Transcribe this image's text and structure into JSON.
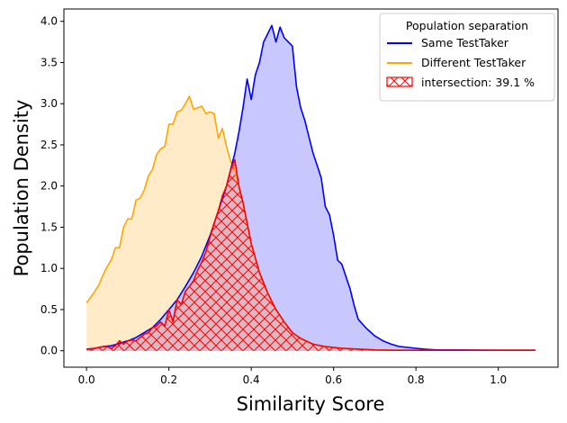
{
  "chart_data": {
    "type": "area",
    "title": "",
    "xlabel": "Similarity Score",
    "ylabel": "Population Density",
    "xlim": [
      -0.055,
      1.145
    ],
    "ylim": [
      -0.2,
      4.15
    ],
    "xticks": [
      0.0,
      0.2,
      0.4,
      0.6,
      0.8,
      1.0
    ],
    "xtick_labels": [
      "0.0",
      "0.2",
      "0.4",
      "0.6",
      "0.8",
      "1.0"
    ],
    "yticks": [
      0.0,
      0.5,
      1.0,
      1.5,
      2.0,
      2.5,
      3.0,
      3.5,
      4.0
    ],
    "ytick_labels": [
      "0.0",
      "0.5",
      "1.0",
      "1.5",
      "2.0",
      "2.5",
      "3.0",
      "3.5",
      "4.0"
    ],
    "grid": false,
    "legend": {
      "title": "Population separation",
      "placement": "top-right",
      "entries": [
        {
          "label": "Same TestTaker",
          "kind": "line",
          "color": "#0000ff"
        },
        {
          "label": "Different TestTaker",
          "kind": "line",
          "color": "#ffa500"
        },
        {
          "label": "intersection: 39.1 %",
          "kind": "hatch",
          "color": "#ff0000"
        }
      ]
    },
    "series": [
      {
        "name": "Same TestTaker",
        "color": "#0000ff",
        "fill": "#c8c8ff",
        "x": [
          0.0,
          0.02,
          0.04,
          0.06,
          0.08,
          0.1,
          0.12,
          0.14,
          0.16,
          0.18,
          0.2,
          0.22,
          0.24,
          0.26,
          0.28,
          0.3,
          0.32,
          0.34,
          0.36,
          0.37,
          0.38,
          0.39,
          0.4,
          0.41,
          0.42,
          0.43,
          0.44,
          0.45,
          0.46,
          0.47,
          0.48,
          0.49,
          0.5,
          0.51,
          0.52,
          0.53,
          0.54,
          0.55,
          0.56,
          0.57,
          0.58,
          0.59,
          0.6,
          0.61,
          0.62,
          0.63,
          0.64,
          0.65,
          0.66,
          0.68,
          0.7,
          0.72,
          0.74,
          0.76,
          0.78,
          0.8,
          0.82,
          0.85,
          0.9,
          1.0,
          1.09
        ],
        "y": [
          0.02,
          0.03,
          0.05,
          0.06,
          0.09,
          0.12,
          0.16,
          0.22,
          0.28,
          0.38,
          0.5,
          0.62,
          0.78,
          0.95,
          1.15,
          1.4,
          1.7,
          2.0,
          2.4,
          2.65,
          2.95,
          3.3,
          3.05,
          3.35,
          3.5,
          3.75,
          3.85,
          3.95,
          3.75,
          3.93,
          3.8,
          3.75,
          3.7,
          3.2,
          2.95,
          2.8,
          2.6,
          2.4,
          2.25,
          2.1,
          1.75,
          1.65,
          1.4,
          1.1,
          1.05,
          0.9,
          0.75,
          0.55,
          0.38,
          0.27,
          0.18,
          0.12,
          0.08,
          0.05,
          0.04,
          0.03,
          0.02,
          0.01,
          0.01,
          0.005,
          0.005
        ]
      },
      {
        "name": "Different TestTaker",
        "color": "#ffa500",
        "fill": "#ffebc8",
        "x": [
          0.0,
          0.01,
          0.02,
          0.03,
          0.04,
          0.05,
          0.06,
          0.07,
          0.08,
          0.09,
          0.1,
          0.11,
          0.12,
          0.13,
          0.14,
          0.15,
          0.16,
          0.17,
          0.18,
          0.19,
          0.2,
          0.21,
          0.22,
          0.23,
          0.24,
          0.25,
          0.26,
          0.27,
          0.28,
          0.29,
          0.3,
          0.31,
          0.32,
          0.33,
          0.34,
          0.35,
          0.36,
          0.37,
          0.38,
          0.39,
          0.4,
          0.42,
          0.44,
          0.46,
          0.48,
          0.5,
          0.52,
          0.55,
          0.58,
          0.62,
          0.66,
          0.7,
          0.75,
          0.8,
          0.9,
          1.0,
          1.09
        ],
        "y": [
          0.58,
          0.65,
          0.72,
          0.8,
          0.92,
          1.02,
          1.1,
          1.25,
          1.25,
          1.5,
          1.6,
          1.6,
          1.83,
          1.85,
          1.95,
          2.12,
          2.2,
          2.38,
          2.45,
          2.48,
          2.75,
          2.75,
          2.9,
          2.92,
          3.0,
          3.09,
          2.93,
          2.95,
          2.97,
          2.88,
          2.9,
          2.88,
          2.58,
          2.7,
          2.48,
          2.3,
          2.2,
          2.0,
          1.8,
          1.55,
          1.3,
          0.95,
          0.7,
          0.5,
          0.35,
          0.22,
          0.15,
          0.08,
          0.05,
          0.03,
          0.02,
          0.01,
          0.005,
          0.005,
          0.005,
          0.005,
          0.005
        ]
      },
      {
        "name": "intersection: 39.1 %",
        "color": "#ff0000",
        "fill": "#dcb7c4",
        "x": [
          0.0,
          0.01,
          0.02,
          0.03,
          0.04,
          0.05,
          0.06,
          0.07,
          0.08,
          0.09,
          0.1,
          0.11,
          0.12,
          0.13,
          0.14,
          0.15,
          0.16,
          0.17,
          0.18,
          0.19,
          0.2,
          0.21,
          0.22,
          0.23,
          0.24,
          0.25,
          0.26,
          0.27,
          0.28,
          0.29,
          0.3,
          0.31,
          0.32,
          0.33,
          0.34,
          0.35,
          0.36,
          0.37,
          0.38,
          0.39,
          0.4,
          0.42,
          0.44,
          0.46,
          0.48,
          0.5,
          0.52,
          0.55,
          0.58,
          0.62,
          0.66,
          0.7,
          0.75,
          0.8,
          0.9,
          1.0,
          1.09
        ],
        "y": [
          0.02,
          0.02,
          0.03,
          0.04,
          0.05,
          0.05,
          0.03,
          0.06,
          0.12,
          0.08,
          0.12,
          0.13,
          0.12,
          0.16,
          0.2,
          0.22,
          0.28,
          0.3,
          0.35,
          0.3,
          0.5,
          0.35,
          0.62,
          0.56,
          0.72,
          0.78,
          0.85,
          0.98,
          1.08,
          1.2,
          1.38,
          1.55,
          1.7,
          1.88,
          2.0,
          2.2,
          2.32,
          2.0,
          1.8,
          1.55,
          1.3,
          0.95,
          0.7,
          0.5,
          0.35,
          0.22,
          0.15,
          0.08,
          0.05,
          0.03,
          0.02,
          0.01,
          0.005,
          0.005,
          0.005,
          0.005,
          0.005
        ]
      }
    ]
  }
}
